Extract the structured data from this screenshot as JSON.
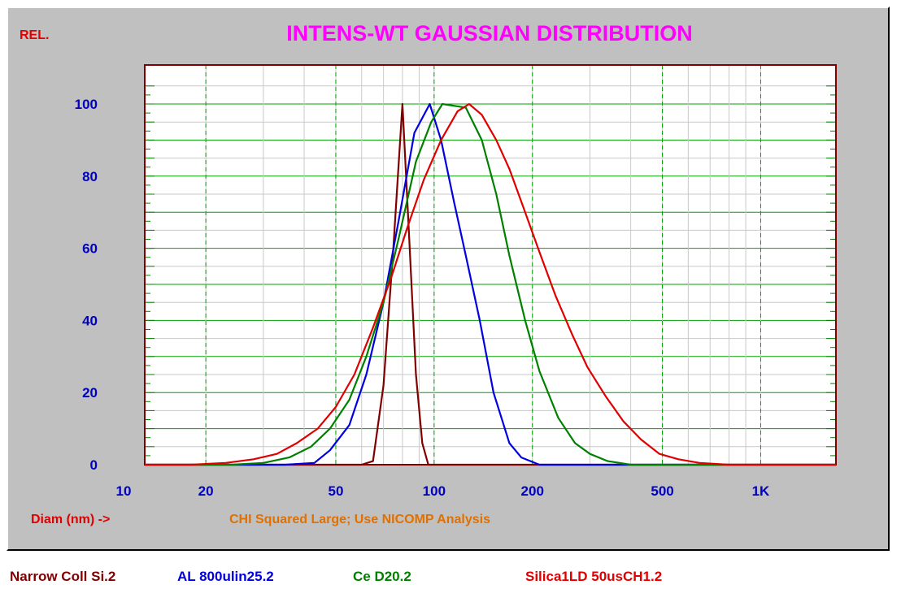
{
  "chart_data": {
    "type": "line",
    "title": "INTENS-WT GAUSSIAN DISTRIBUTION",
    "ylabel": "REL.",
    "xlabel": "Diam (nm) ->",
    "note": "CHI Squared Large; Use NICOMP Analysis",
    "x_scale": "log",
    "xlim": [
      13,
      1700
    ],
    "ylim": [
      0,
      100
    ],
    "x_ticks": [
      {
        "value": 10,
        "label": "10"
      },
      {
        "value": 20,
        "label": "20"
      },
      {
        "value": 50,
        "label": "50"
      },
      {
        "value": 100,
        "label": "100"
      },
      {
        "value": 200,
        "label": "200"
      },
      {
        "value": 500,
        "label": "500"
      },
      {
        "value": 1000,
        "label": "1K"
      }
    ],
    "y_ticks": [
      {
        "value": 0,
        "label": "0"
      },
      {
        "value": 20,
        "label": "20"
      },
      {
        "value": 40,
        "label": "40"
      },
      {
        "value": 60,
        "label": "60"
      },
      {
        "value": 80,
        "label": "80"
      },
      {
        "value": 100,
        "label": "100"
      }
    ],
    "grid": true,
    "legend_position": "bottom",
    "series": [
      {
        "name": "Narrow Coll Si.2",
        "color": "#800000",
        "points": [
          [
            13,
            0
          ],
          [
            60,
            0
          ],
          [
            65,
            1
          ],
          [
            70,
            22
          ],
          [
            75,
            60
          ],
          [
            80,
            100
          ],
          [
            84,
            62
          ],
          [
            88,
            25
          ],
          [
            92,
            6
          ],
          [
            96,
            0
          ],
          [
            1700,
            0
          ]
        ]
      },
      {
        "name": "AL 800ulin25.2",
        "color": "#0000e0",
        "points": [
          [
            13,
            0
          ],
          [
            35,
            0
          ],
          [
            43,
            0.5
          ],
          [
            48,
            4
          ],
          [
            55,
            11
          ],
          [
            62,
            25
          ],
          [
            70,
            45
          ],
          [
            78,
            68
          ],
          [
            87,
            92
          ],
          [
            97,
            100
          ],
          [
            105,
            90
          ],
          [
            115,
            73
          ],
          [
            125,
            58
          ],
          [
            138,
            40
          ],
          [
            152,
            20
          ],
          [
            170,
            6
          ],
          [
            185,
            2
          ],
          [
            210,
            0
          ],
          [
            1700,
            0
          ]
        ]
      },
      {
        "name": "Ce D20.2",
        "color": "#008000",
        "points": [
          [
            13,
            0
          ],
          [
            24,
            0
          ],
          [
            30,
            0.5
          ],
          [
            36,
            2
          ],
          [
            42,
            5
          ],
          [
            48,
            10
          ],
          [
            55,
            18
          ],
          [
            62,
            30
          ],
          [
            70,
            45
          ],
          [
            78,
            63
          ],
          [
            88,
            84
          ],
          [
            98,
            95
          ],
          [
            106,
            100
          ],
          [
            125,
            99
          ],
          [
            140,
            90
          ],
          [
            155,
            75
          ],
          [
            170,
            58
          ],
          [
            190,
            40
          ],
          [
            210,
            26
          ],
          [
            240,
            13
          ],
          [
            270,
            6
          ],
          [
            300,
            3
          ],
          [
            340,
            1
          ],
          [
            400,
            0
          ],
          [
            1700,
            0
          ]
        ]
      },
      {
        "name": "Silica1LD 50usCH1.2",
        "color": "#e00000",
        "points": [
          [
            13,
            0
          ],
          [
            18,
            0
          ],
          [
            23,
            0.5
          ],
          [
            28,
            1.5
          ],
          [
            33,
            3
          ],
          [
            38,
            6
          ],
          [
            44,
            10
          ],
          [
            50,
            16
          ],
          [
            57,
            25
          ],
          [
            65,
            38
          ],
          [
            74,
            52
          ],
          [
            83,
            66
          ],
          [
            93,
            79
          ],
          [
            105,
            90
          ],
          [
            118,
            98
          ],
          [
            128,
            100
          ],
          [
            140,
            97
          ],
          [
            155,
            90
          ],
          [
            170,
            82
          ],
          [
            190,
            70
          ],
          [
            210,
            59
          ],
          [
            235,
            47
          ],
          [
            265,
            36
          ],
          [
            295,
            27
          ],
          [
            335,
            19
          ],
          [
            380,
            12
          ],
          [
            430,
            7
          ],
          [
            490,
            3
          ],
          [
            560,
            1.5
          ],
          [
            650,
            0.5
          ],
          [
            800,
            0
          ],
          [
            1700,
            0
          ]
        ]
      }
    ]
  }
}
